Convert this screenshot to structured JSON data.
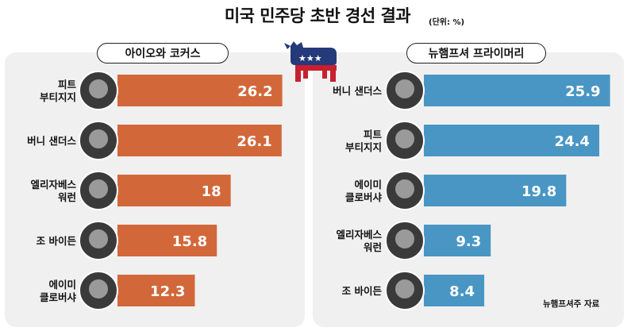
{
  "title": "미국 민주당 초반 경선 결과",
  "unit": "(단위: %)",
  "source": "뉴햄프셔주 자료",
  "colors": {
    "iowa": "#d2683a",
    "nh": "#4996c4"
  },
  "icons": {
    "logo": "democratic-donkey-icon",
    "portrait": "candidate-portrait-icon"
  },
  "chart_data": [
    {
      "type": "bar",
      "title": "아이오와 코커스",
      "categories": [
        "피트\n부티지지",
        "버니 샌더스",
        "엘리자베스\n워런",
        "조 바이든",
        "에이미\n클로버샤"
      ],
      "values": [
        26.2,
        26.1,
        18,
        15.8,
        12.3
      ],
      "value_labels": [
        "26.2",
        "26.1",
        "18",
        "15.8",
        "12.3"
      ],
      "xlabel": "",
      "ylabel": "",
      "xlim": [
        0,
        30
      ],
      "grid": false
    },
    {
      "type": "bar",
      "title": "뉴햄프셔 프라이머리",
      "categories": [
        "버니 샌더스",
        "피트\n부티지지",
        "에이미\n클로버샤",
        "엘리자베스\n워런",
        "조 바이든"
      ],
      "values": [
        25.9,
        24.4,
        19.8,
        9.3,
        8.4
      ],
      "value_labels": [
        "25.9",
        "24.4",
        "19.8",
        "9.3",
        "8.4"
      ],
      "xlabel": "",
      "ylabel": "",
      "xlim": [
        0,
        30
      ],
      "grid": false
    }
  ]
}
